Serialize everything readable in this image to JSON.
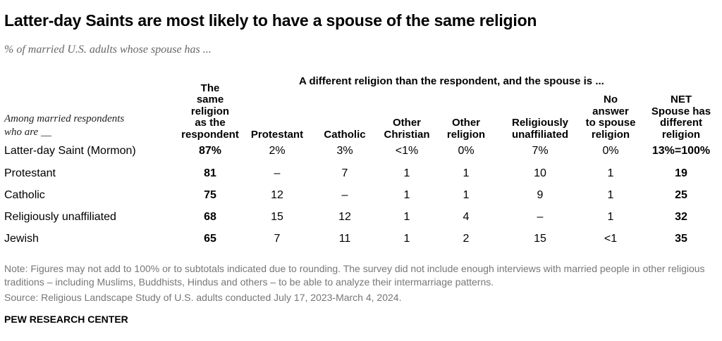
{
  "title": "Latter-day Saints are most likely to have a spouse of the same religion",
  "subtitle": "% of married U.S. adults whose spouse has ...",
  "span_header": "A different religion than the respondent, and the spouse is ...",
  "stub_header": [
    "Among married respondents",
    "who are __"
  ],
  "columns": [
    [
      "The",
      "same",
      "religion",
      "as the",
      "respondent"
    ],
    [
      "Protestant"
    ],
    [
      "Catholic"
    ],
    [
      "Other",
      "Christian"
    ],
    [
      "Other",
      "religion"
    ],
    [
      "Religiously",
      "unaffiliated"
    ],
    [
      "No",
      "answer",
      "to spouse",
      "religion"
    ],
    [
      "NET",
      "Spouse has",
      "different",
      "religion"
    ]
  ],
  "chart_data": {
    "type": "table",
    "title": "Latter-day Saints are most likely to have a spouse of the same religion",
    "subtitle": "% of married U.S. adults whose spouse has ...",
    "row_header": "Among married respondents who are __",
    "column_group": "A different religion than the respondent, and the spouse is ...",
    "columns": [
      "The same religion as the respondent",
      "Protestant",
      "Catholic",
      "Other Christian",
      "Other religion",
      "Religiously unaffiliated",
      "No answer to spouse religion",
      "NET Spouse has different religion"
    ],
    "rows": [
      {
        "label": "Latter-day Saint (Mormon)",
        "values": [
          "87%",
          "2%",
          "3%",
          "<1%",
          "0%",
          "7%",
          "0%",
          "13%=100%"
        ]
      },
      {
        "label": "Protestant",
        "values": [
          "81",
          "–",
          "7",
          "1",
          "1",
          "10",
          "1",
          "19"
        ]
      },
      {
        "label": "Catholic",
        "values": [
          "75",
          "12",
          "–",
          "1",
          "1",
          "9",
          "1",
          "25"
        ]
      },
      {
        "label": "Religiously unaffiliated",
        "values": [
          "68",
          "15",
          "12",
          "1",
          "4",
          "–",
          "1",
          "32"
        ]
      },
      {
        "label": "Jewish",
        "values": [
          "65",
          "7",
          "11",
          "1",
          "2",
          "15",
          "<1",
          "35"
        ]
      }
    ],
    "bold_columns": [
      0,
      7
    ]
  },
  "note": "Note: Figures may not add to 100% or to subtotals indicated due to rounding. The survey did not include enough interviews with married people in other religious traditions – including Muslims, Buddhists, Hindus and others – to be able to analyze their intermarriage patterns.",
  "source": "Source: Religious Landscape Study of U.S. adults conducted July 17, 2023-March 4, 2024.",
  "credit": "PEW RESEARCH CENTER"
}
